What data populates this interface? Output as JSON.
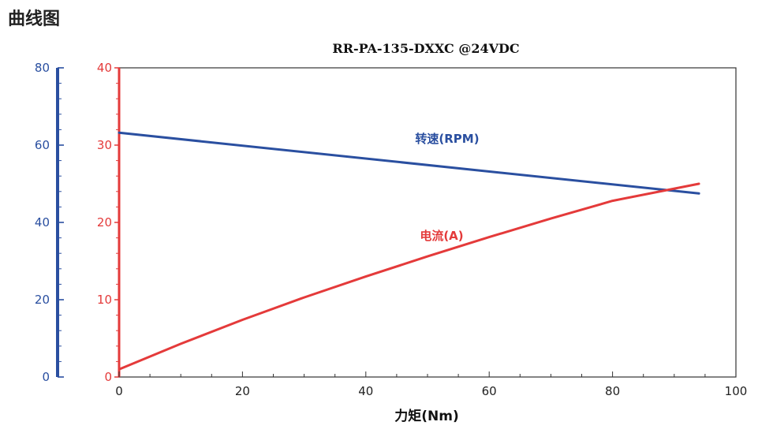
{
  "page": {
    "heading": "曲线图"
  },
  "colors": {
    "speed": "#2a4fa0",
    "current": "#e43a3a",
    "frame": "#333333"
  },
  "chart_data": {
    "type": "line",
    "title": "RR-PA-135-DXXC @24VDC",
    "xlabel": "力矩(Nm)",
    "xlim": [
      0,
      100
    ],
    "x_ticks": [
      "0",
      "20",
      "40",
      "60",
      "80",
      "100"
    ],
    "y_left_outer": {
      "lim": [
        0,
        80
      ],
      "ticks": [
        "0",
        "20",
        "40",
        "60",
        "80"
      ],
      "color": "#2a4fa0"
    },
    "y_left_inner": {
      "lim": [
        0,
        40
      ],
      "ticks": [
        "0",
        "10",
        "20",
        "30",
        "40"
      ],
      "color": "#e43a3a"
    },
    "grid": false,
    "series": [
      {
        "name": "转速(RPM)",
        "axis": "outer",
        "color": "#2a4fa0",
        "x": [
          0,
          94
        ],
        "y": [
          63.2,
          47.5
        ]
      },
      {
        "name": "电流(A)",
        "axis": "inner",
        "color": "#e43a3a",
        "x": [
          0,
          10,
          20,
          30,
          40,
          50,
          60,
          70,
          80,
          94
        ],
        "y": [
          1.0,
          4.3,
          7.4,
          10.3,
          13.0,
          15.6,
          18.1,
          20.5,
          22.8,
          25.0
        ]
      }
    ]
  }
}
